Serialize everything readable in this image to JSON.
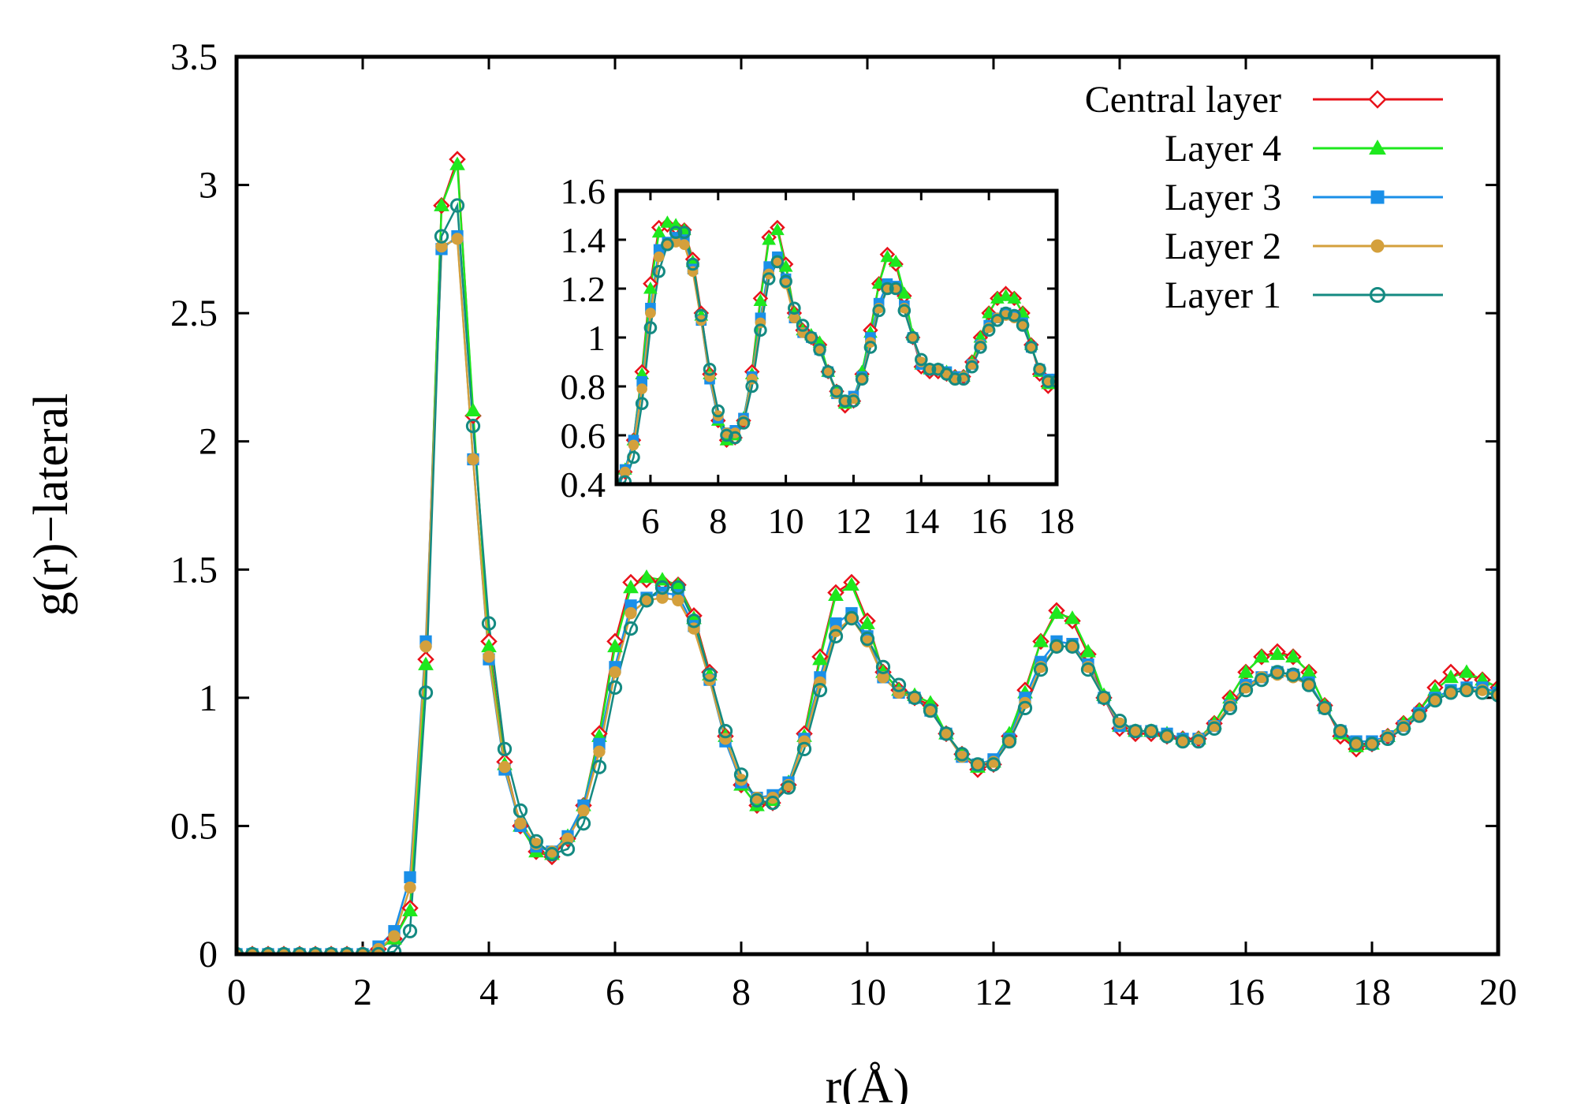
{
  "chart_data": {
    "type": "line",
    "xlabel": "r(Å)",
    "ylabel": "g(r)−lateral",
    "xlim": [
      0,
      20
    ],
    "ylim": [
      0,
      3.5
    ],
    "xticks": [
      "0",
      "2",
      "4",
      "6",
      "8",
      "10",
      "12",
      "14",
      "16",
      "18",
      "20"
    ],
    "yticks": [
      "0",
      "0.5",
      "1",
      "1.5",
      "2",
      "2.5",
      "3",
      "3.5"
    ],
    "legend_position": "top-right",
    "x": [
      0,
      0.25,
      0.5,
      0.75,
      1.0,
      1.25,
      1.5,
      1.75,
      2.0,
      2.25,
      2.5,
      2.75,
      3.0,
      3.25,
      3.5,
      3.75,
      4.0,
      4.25,
      4.5,
      4.75,
      5.0,
      5.25,
      5.5,
      5.75,
      6.0,
      6.25,
      6.5,
      6.75,
      7.0,
      7.25,
      7.5,
      7.75,
      8.0,
      8.25,
      8.5,
      8.75,
      9.0,
      9.25,
      9.5,
      9.75,
      10.0,
      10.25,
      10.5,
      10.75,
      11.0,
      11.25,
      11.5,
      11.75,
      12.0,
      12.25,
      12.5,
      12.75,
      13.0,
      13.25,
      13.5,
      13.75,
      14.0,
      14.25,
      14.5,
      14.75,
      15.0,
      15.25,
      15.5,
      15.75,
      16.0,
      16.25,
      16.5,
      16.75,
      17.0,
      17.25,
      17.5,
      17.75,
      18.0,
      18.25,
      18.5,
      18.75,
      19.0,
      19.25,
      19.5,
      19.75,
      20.0
    ],
    "series": [
      {
        "name": "Central layer",
        "color": "#e8121a",
        "marker": "diamond-open",
        "values": [
          0,
          0,
          0,
          0,
          0,
          0,
          0,
          0,
          0,
          0.02,
          0.06,
          0.18,
          1.15,
          2.92,
          3.1,
          2.1,
          1.22,
          0.75,
          0.5,
          0.4,
          0.38,
          0.45,
          0.58,
          0.86,
          1.22,
          1.45,
          1.46,
          1.45,
          1.44,
          1.32,
          1.1,
          0.85,
          0.66,
          0.58,
          0.59,
          0.66,
          0.86,
          1.16,
          1.41,
          1.45,
          1.3,
          1.1,
          1.03,
          1.0,
          0.97,
          0.86,
          0.78,
          0.72,
          0.74,
          0.85,
          1.03,
          1.22,
          1.34,
          1.3,
          1.17,
          1.0,
          0.88,
          0.86,
          0.86,
          0.85,
          0.84,
          0.84,
          0.9,
          1.0,
          1.1,
          1.16,
          1.18,
          1.16,
          1.1,
          0.97,
          0.85,
          0.8,
          0.82,
          0.85,
          0.9,
          0.95,
          1.04,
          1.1,
          1.09,
          1.07,
          1.04
        ]
      },
      {
        "name": "Layer 4",
        "color": "#1ee81e",
        "marker": "triangle-filled",
        "values": [
          0,
          0,
          0,
          0,
          0,
          0,
          0,
          0,
          0,
          0.02,
          0.06,
          0.17,
          1.13,
          2.92,
          3.08,
          2.12,
          1.2,
          0.74,
          0.5,
          0.4,
          0.39,
          0.46,
          0.58,
          0.85,
          1.2,
          1.43,
          1.47,
          1.46,
          1.44,
          1.31,
          1.09,
          0.85,
          0.66,
          0.58,
          0.6,
          0.67,
          0.85,
          1.15,
          1.4,
          1.44,
          1.29,
          1.1,
          1.03,
          1.01,
          0.98,
          0.86,
          0.78,
          0.73,
          0.75,
          0.86,
          1.02,
          1.22,
          1.33,
          1.31,
          1.18,
          1.01,
          0.89,
          0.87,
          0.87,
          0.86,
          0.84,
          0.84,
          0.9,
          1.0,
          1.1,
          1.16,
          1.17,
          1.16,
          1.1,
          0.97,
          0.86,
          0.81,
          0.82,
          0.85,
          0.9,
          0.95,
          1.03,
          1.08,
          1.1,
          1.07,
          1.04
        ]
      },
      {
        "name": "Layer 3",
        "color": "#1a8fe8",
        "marker": "square-filled",
        "values": [
          0,
          0,
          0,
          0,
          0,
          0,
          0,
          0,
          0,
          0.03,
          0.09,
          0.3,
          1.22,
          2.75,
          2.8,
          1.93,
          1.15,
          0.72,
          0.5,
          0.42,
          0.4,
          0.46,
          0.58,
          0.82,
          1.12,
          1.36,
          1.39,
          1.41,
          1.4,
          1.28,
          1.07,
          0.83,
          0.67,
          0.61,
          0.62,
          0.67,
          0.84,
          1.08,
          1.29,
          1.33,
          1.24,
          1.08,
          1.02,
          1.0,
          0.95,
          0.86,
          0.77,
          0.74,
          0.76,
          0.84,
          1.0,
          1.14,
          1.22,
          1.21,
          1.13,
          1.0,
          0.89,
          0.87,
          0.87,
          0.86,
          0.84,
          0.84,
          0.89,
          0.97,
          1.05,
          1.08,
          1.1,
          1.09,
          1.06,
          0.96,
          0.87,
          0.83,
          0.83,
          0.85,
          0.89,
          0.94,
          1.0,
          1.03,
          1.04,
          1.04,
          1.02
        ]
      },
      {
        "name": "Layer 2",
        "color": "#d4a03c",
        "marker": "circle-filled",
        "values": [
          0,
          0,
          0,
          0,
          0,
          0,
          0,
          0,
          0,
          0.02,
          0.07,
          0.26,
          1.2,
          2.76,
          2.79,
          1.93,
          1.16,
          0.73,
          0.51,
          0.43,
          0.4,
          0.45,
          0.56,
          0.79,
          1.1,
          1.33,
          1.38,
          1.39,
          1.38,
          1.27,
          1.07,
          0.84,
          0.68,
          0.61,
          0.61,
          0.66,
          0.83,
          1.06,
          1.26,
          1.31,
          1.22,
          1.08,
          1.02,
          1.0,
          0.95,
          0.86,
          0.77,
          0.74,
          0.75,
          0.83,
          0.98,
          1.12,
          1.2,
          1.2,
          1.12,
          1.0,
          0.9,
          0.87,
          0.87,
          0.85,
          0.83,
          0.84,
          0.89,
          0.97,
          1.04,
          1.08,
          1.09,
          1.08,
          1.05,
          0.96,
          0.87,
          0.82,
          0.82,
          0.85,
          0.89,
          0.93,
          0.99,
          1.02,
          1.03,
          1.03,
          1.01
        ]
      },
      {
        "name": "Layer 1",
        "color": "#148a82",
        "marker": "circle-open",
        "values": [
          0,
          0,
          0,
          0,
          0,
          0,
          0,
          0,
          0,
          0,
          0.01,
          0.09,
          1.02,
          2.8,
          2.92,
          2.06,
          1.29,
          0.8,
          0.56,
          0.44,
          0.39,
          0.41,
          0.51,
          0.73,
          1.04,
          1.27,
          1.38,
          1.43,
          1.43,
          1.3,
          1.09,
          0.87,
          0.7,
          0.6,
          0.59,
          0.65,
          0.8,
          1.03,
          1.24,
          1.31,
          1.23,
          1.12,
          1.05,
          1.0,
          0.95,
          0.86,
          0.78,
          0.74,
          0.74,
          0.83,
          0.96,
          1.11,
          1.2,
          1.2,
          1.11,
          1.0,
          0.91,
          0.87,
          0.87,
          0.85,
          0.83,
          0.83,
          0.88,
          0.96,
          1.03,
          1.07,
          1.1,
          1.09,
          1.05,
          0.96,
          0.87,
          0.82,
          0.82,
          0.84,
          0.88,
          0.93,
          0.99,
          1.02,
          1.03,
          1.02,
          1.01
        ]
      }
    ],
    "inset": {
      "xlim": [
        5,
        18
      ],
      "ylim": [
        0.4,
        1.6
      ],
      "xticks": [
        "6",
        "8",
        "10",
        "12",
        "14",
        "16",
        "18"
      ],
      "yticks": [
        "0.4",
        "0.6",
        "0.8",
        "1",
        "1.2",
        "1.4",
        "1.6"
      ],
      "description_of_range": "zoom of main series for r from 5 to 18"
    }
  }
}
